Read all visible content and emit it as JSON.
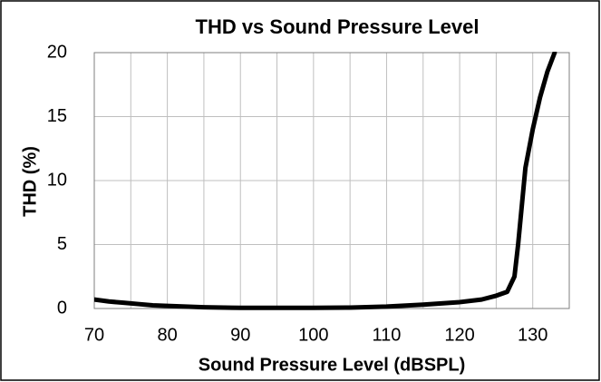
{
  "chart_data": {
    "type": "line",
    "title": "THD vs Sound Pressure Level",
    "x_label": "Sound Pressure Level (dBSPL)",
    "y_label": "THD (%)",
    "series": [
      {
        "name": "THD",
        "color": "#000000",
        "x": [
          70,
          72,
          74,
          76,
          78,
          80,
          85,
          90,
          95,
          100,
          105,
          110,
          115,
          120,
          123,
          125,
          126.5,
          127.5,
          128,
          128.5,
          129,
          130,
          131,
          132,
          133
        ],
        "values": [
          0.7,
          0.55,
          0.45,
          0.35,
          0.25,
          0.2,
          0.1,
          0.05,
          0.05,
          0.05,
          0.07,
          0.15,
          0.3,
          0.5,
          0.7,
          1.0,
          1.3,
          2.5,
          5,
          8,
          11,
          14,
          16.5,
          18.5,
          20
        ]
      }
    ],
    "xlim": [
      70,
      135
    ],
    "xticks": [
      70,
      80,
      90,
      100,
      110,
      120,
      130
    ],
    "minor_xgrid": [
      75,
      85,
      95,
      105,
      115,
      125,
      135
    ],
    "ylim": [
      0,
      20
    ],
    "yticks": [
      0,
      5,
      10,
      15,
      20
    ],
    "grid": true
  }
}
